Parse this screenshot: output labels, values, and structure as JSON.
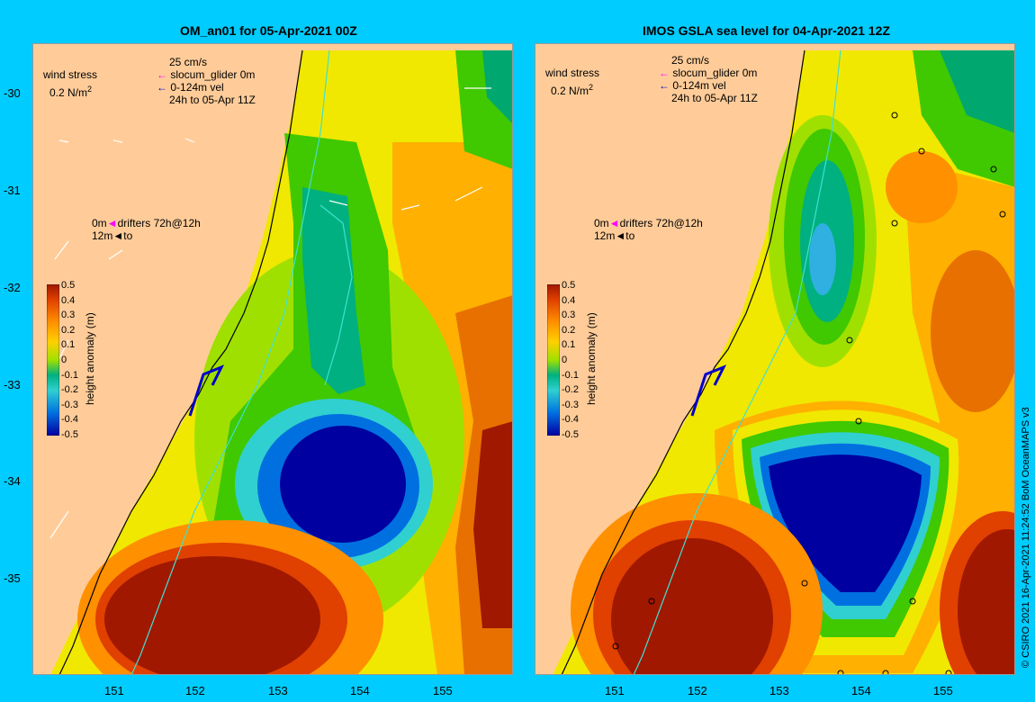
{
  "panels": [
    {
      "title": "OM_an01 for 05-Apr-2021 00Z",
      "legend": {
        "wind_label": "wind stress",
        "wind_scale": "0.2 N/m",
        "wind_sup": "2",
        "speed_scale": "25 cm/s",
        "glider": "slocum_glider 0m",
        "vel": "0-124m vel",
        "window": "24h to 05-Apr 11Z",
        "drift_line1": "0m",
        "drift_line1b": "drifters 72h@12h",
        "drift_line2": "12m",
        "drift_line2b": "to"
      }
    },
    {
      "title": "IMOS GSLA sea level  for 04-Apr-2021 12Z",
      "legend": {
        "wind_label": "wind stress",
        "wind_scale": "0.2 N/m",
        "wind_sup": "2",
        "speed_scale": "25 cm/s",
        "glider": "slocum_glider 0m",
        "vel": "0-124m vel",
        "window": "24h to 05-Apr 11Z",
        "drift_line1": "0m",
        "drift_line1b": "drifters 72h@12h",
        "drift_line2": "12m",
        "drift_line2b": "to"
      }
    }
  ],
  "axes": {
    "x_ticks": [
      "151",
      "152",
      "153",
      "154",
      "155"
    ],
    "y_ticks": [
      "-30",
      "-31",
      "-32",
      "-33",
      "-34",
      "-35"
    ]
  },
  "colorbar": {
    "label": "height anomaly (m)",
    "ticks": [
      "0.5",
      "0.4",
      "0.3",
      "0.2",
      "0.1",
      "0",
      "-0.1",
      "-0.2",
      "-0.3",
      "-0.4",
      "-0.5"
    ]
  },
  "credit": "© CSIRO 2021   16-Apr-2021 11:24:52 BoM OceanMAPS v3",
  "colors": {
    "background": "#00ccff",
    "land": "#ffcc99",
    "cyan_contour": "#40e0d0",
    "glider_track": "#0000cc",
    "drifter_0m": "#ff00ff"
  }
}
